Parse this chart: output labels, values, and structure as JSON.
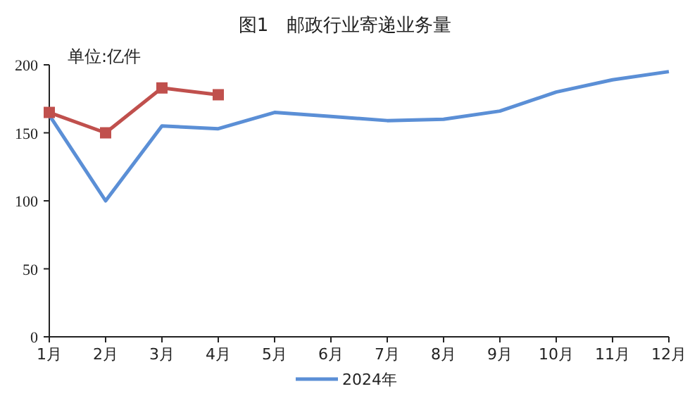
{
  "chart_data": {
    "type": "line",
    "title": "图1　邮政行业寄递业务量",
    "annotations": [
      "单位:亿件"
    ],
    "categories": [
      "1月",
      "2月",
      "3月",
      "4月",
      "5月",
      "6月",
      "7月",
      "8月",
      "9月",
      "10月",
      "11月",
      "12月"
    ],
    "series": [
      {
        "name": "2024年",
        "color": "#5b8fd6",
        "marker": "none",
        "values": [
          163,
          100,
          155,
          153,
          165,
          162,
          159,
          160,
          166,
          180,
          189,
          195
        ]
      },
      {
        "color": "#c0504d",
        "marker": "square",
        "values": [
          165,
          150,
          183,
          178,
          null,
          null,
          null,
          null,
          null,
          null,
          null,
          null
        ]
      }
    ],
    "ylim": [
      0,
      200
    ],
    "yticks": [
      0,
      50,
      100,
      150,
      200
    ],
    "grid": false,
    "legend": "bottom"
  }
}
